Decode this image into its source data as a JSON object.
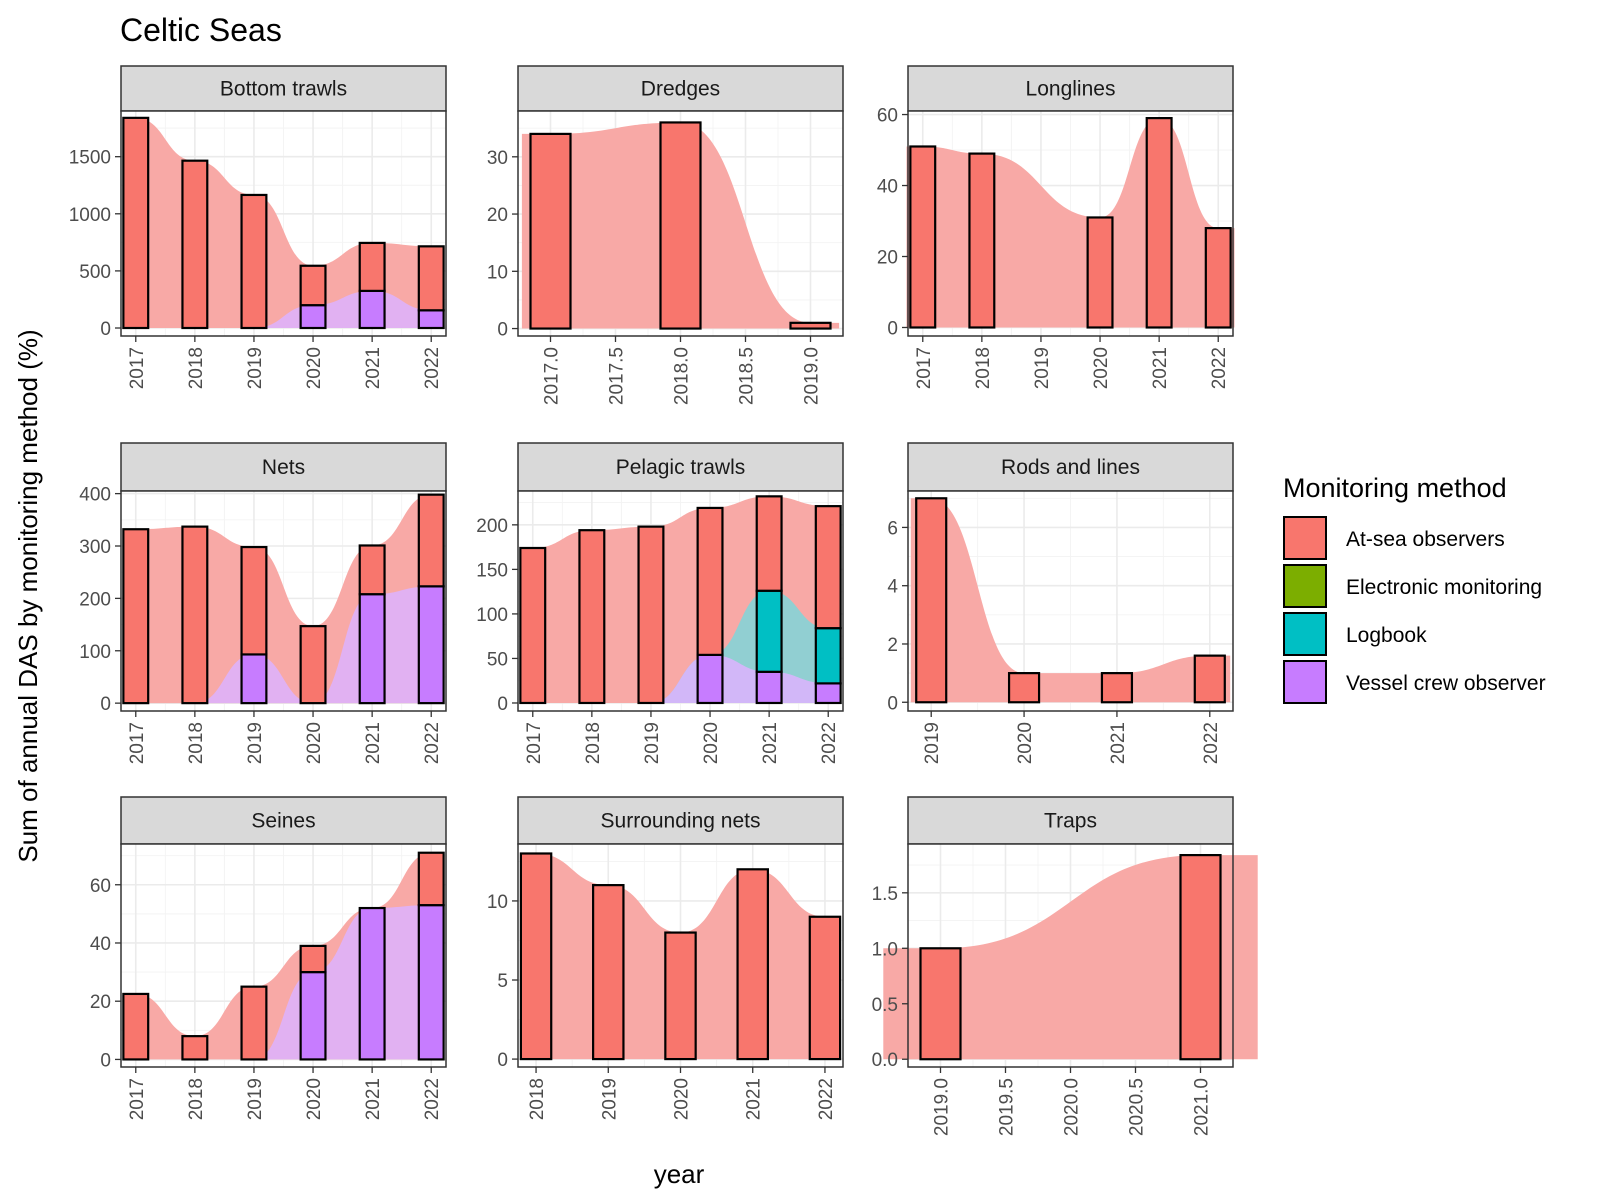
{
  "title": "Celtic Seas",
  "xlabel": "year",
  "ylabel": "Sum of annual DAS by monitoring method (%)",
  "legend": {
    "title": "Monitoring method",
    "placement": "right",
    "items": [
      {
        "key": "atsea",
        "label": "At-sea observers",
        "color": "#F8766D"
      },
      {
        "key": "em",
        "label": "Electronic monitoring",
        "color": "#7CAE00"
      },
      {
        "key": "logbook",
        "label": "Logbook",
        "color": "#00BFC4"
      },
      {
        "key": "vessel",
        "label": "Vessel crew observer",
        "color": "#C77CFF"
      }
    ]
  },
  "colors": {
    "atsea": "#F8766D",
    "em": "#7CAE00",
    "logbook": "#00BFC4",
    "vessel": "#C77CFF",
    "atsea_area": "#F8A9A6",
    "vessel_area": "#DDB3FF",
    "logbook_area": "#7FD6D9"
  },
  "chart_data": [
    {
      "type": "bar",
      "facet": "Bottom trawls",
      "grid": true,
      "x": [
        2017,
        2018,
        2019,
        2020,
        2021,
        2022
      ],
      "series": [
        {
          "key": "vessel",
          "values": [
            0,
            0,
            0,
            200,
            325,
            155
          ]
        },
        {
          "key": "atsea",
          "values": [
            1840,
            1465,
            1165,
            345,
            420,
            560
          ]
        }
      ],
      "xlim": [
        2016.75,
        2022.25
      ],
      "ylim": [
        -70,
        1900
      ],
      "xticks": [
        "2017",
        "2018",
        "2019",
        "2020",
        "2021",
        "2022"
      ],
      "yticks": [
        "0",
        "500",
        "1000",
        "1500"
      ]
    },
    {
      "type": "bar",
      "facet": "Dredges",
      "grid": true,
      "x": [
        2017,
        2018,
        2019
      ],
      "series": [
        {
          "key": "atsea",
          "values": [
            34,
            36,
            1
          ]
        }
      ],
      "xlim": [
        2016.75,
        2019.25
      ],
      "ylim": [
        -1.3,
        38
      ],
      "xticks": [
        "2017.0",
        "2017.5",
        "2018.0",
        "2018.5",
        "2019.0"
      ],
      "yticks": [
        "0",
        "10",
        "20",
        "30"
      ]
    },
    {
      "type": "bar",
      "facet": "Longlines",
      "grid": true,
      "x": [
        2017,
        2018,
        2020,
        2021,
        2022
      ],
      "series": [
        {
          "key": "atsea",
          "values": [
            51,
            49,
            31,
            59,
            28
          ]
        }
      ],
      "xlim": [
        2016.75,
        2022.25
      ],
      "ylim": [
        -2.4,
        61
      ],
      "xticks": [
        "2017",
        "2018",
        "2019",
        "2020",
        "2021",
        "2022"
      ],
      "yticks": [
        "0",
        "20",
        "40",
        "60"
      ]
    },
    {
      "type": "bar",
      "facet": "Nets",
      "grid": true,
      "x": [
        2017,
        2018,
        2019,
        2020,
        2021,
        2022
      ],
      "series": [
        {
          "key": "vessel",
          "values": [
            0,
            0,
            93,
            0,
            208,
            223
          ]
        },
        {
          "key": "atsea",
          "values": [
            332,
            337,
            205,
            147,
            93,
            175
          ]
        }
      ],
      "xlim": [
        2016.75,
        2022.25
      ],
      "ylim": [
        -15,
        405
      ],
      "xticks": [
        "2017",
        "2018",
        "2019",
        "2020",
        "2021",
        "2022"
      ],
      "yticks": [
        "0",
        "100",
        "200",
        "300",
        "400"
      ]
    },
    {
      "type": "bar",
      "facet": "Pelagic trawls",
      "grid": true,
      "x": [
        2017,
        2018,
        2019,
        2020,
        2021,
        2022
      ],
      "series": [
        {
          "key": "vessel",
          "values": [
            0,
            0,
            0,
            54,
            35,
            22
          ]
        },
        {
          "key": "logbook",
          "values": [
            0,
            0,
            0,
            0,
            91,
            62
          ]
        },
        {
          "key": "atsea",
          "values": [
            174,
            194,
            198,
            165,
            106,
            137
          ]
        }
      ],
      "xlim": [
        2016.75,
        2022.25
      ],
      "ylim": [
        -9,
        238
      ],
      "xticks": [
        "2017",
        "2018",
        "2019",
        "2020",
        "2021",
        "2022"
      ],
      "yticks": [
        "0",
        "50",
        "100",
        "150",
        "200"
      ]
    },
    {
      "type": "bar",
      "facet": "Rods and lines",
      "grid": true,
      "x": [
        2019,
        2020,
        2021,
        2022
      ],
      "series": [
        {
          "key": "atsea",
          "values": [
            7,
            1,
            1,
            1.6
          ]
        }
      ],
      "xlim": [
        2018.75,
        2022.25
      ],
      "ylim": [
        -0.3,
        7.25
      ],
      "xticks": [
        "2019",
        "2020",
        "2021",
        "2022"
      ],
      "yticks": [
        "0",
        "2",
        "4",
        "6"
      ]
    },
    {
      "type": "bar",
      "facet": "Seines",
      "grid": true,
      "x": [
        2017,
        2018,
        2019,
        2020,
        2021,
        2022
      ],
      "series": [
        {
          "key": "vessel",
          "values": [
            0,
            0,
            0,
            30,
            52,
            53
          ]
        },
        {
          "key": "atsea",
          "values": [
            22.5,
            8,
            25,
            9,
            0,
            18
          ]
        }
      ],
      "xlim": [
        2016.75,
        2022.25
      ],
      "ylim": [
        -2.6,
        74
      ],
      "xticks": [
        "2017",
        "2018",
        "2019",
        "2020",
        "2021",
        "2022"
      ],
      "yticks": [
        "0",
        "20",
        "40",
        "60"
      ]
    },
    {
      "type": "bar",
      "facet": "Surrounding nets",
      "grid": true,
      "x": [
        2018,
        2019,
        2020,
        2021,
        2022
      ],
      "series": [
        {
          "key": "atsea",
          "values": [
            13,
            11,
            8,
            12,
            9
          ]
        }
      ],
      "xlim": [
        2017.75,
        2022.25
      ],
      "ylim": [
        -0.5,
        13.6
      ],
      "xticks": [
        "2018",
        "2019",
        "2020",
        "2021",
        "2022"
      ],
      "yticks": [
        "0",
        "5",
        "10"
      ]
    },
    {
      "type": "bar",
      "facet": "Traps",
      "grid": true,
      "x": [
        2019,
        2021
      ],
      "series": [
        {
          "key": "atsea",
          "values": [
            1,
            1.84
          ]
        }
      ],
      "xlim": [
        2018.75,
        2021.25
      ],
      "ylim": [
        -0.07,
        1.94
      ],
      "xticks": [
        "2019.0",
        "2019.5",
        "2020.0",
        "2020.5",
        "2021.0"
      ],
      "yticks": [
        "0.0",
        "0.5",
        "1.0",
        "1.5"
      ]
    }
  ]
}
